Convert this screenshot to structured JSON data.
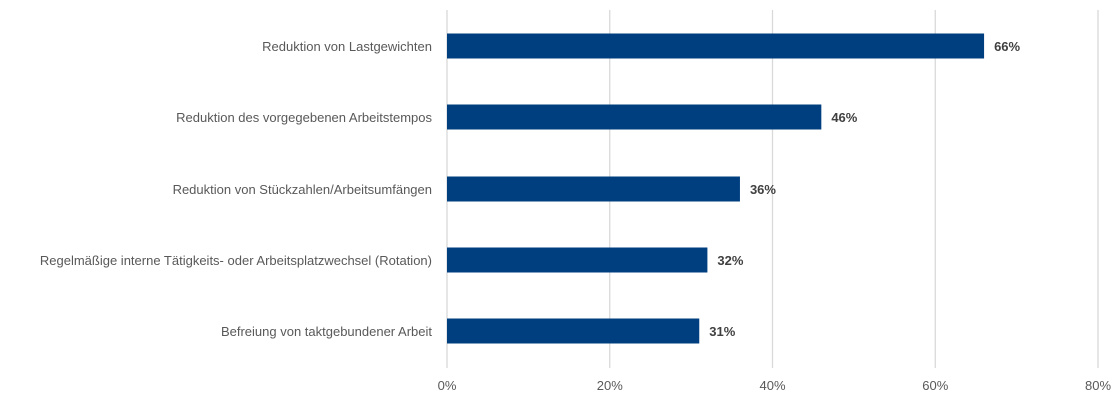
{
  "chart_data": {
    "type": "bar",
    "orientation": "horizontal",
    "categories": [
      "Reduktion von Lastgewichten",
      "Reduktion des vorgegebenen Arbeitstempos",
      "Reduktion von Stückzahlen/Arbeitsumfängen",
      "Regelmäßige interne Tätigkeits- oder Arbeitsplatzwechsel (Rotation)",
      "Befreiung von taktgebundener Arbeit"
    ],
    "values": [
      66,
      46,
      36,
      32,
      31
    ],
    "data_labels": [
      "66%",
      "46%",
      "36%",
      "32%",
      "31%"
    ],
    "x_ticks": [
      "0%",
      "20%",
      "40%",
      "60%",
      "80%"
    ],
    "x_tick_values": [
      0,
      20,
      40,
      60,
      80
    ],
    "xlim": [
      0,
      80
    ],
    "grid": true,
    "bar_color": "#003f7f",
    "title": "",
    "xlabel": "",
    "ylabel": ""
  }
}
